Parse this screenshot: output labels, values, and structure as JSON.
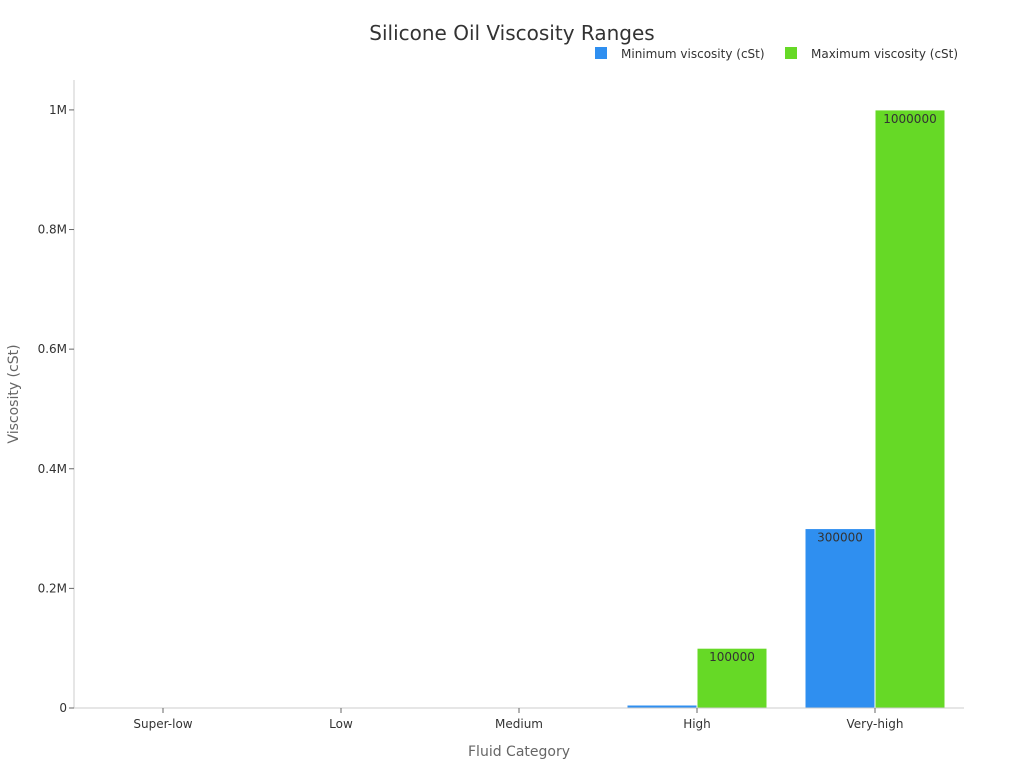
{
  "chart_data": {
    "type": "bar",
    "title": "Silicone Oil Viscosity Ranges",
    "xlabel": "Fluid Category",
    "ylabel": "Viscosity (cSt)",
    "categories": [
      "Super-low",
      "Low",
      "Medium",
      "High",
      "Very-high"
    ],
    "series": [
      {
        "name": "Minimum viscosity (cSt)",
        "color": "#2f8ff0",
        "values": [
          0.65,
          5,
          100,
          5000,
          300000
        ],
        "labels": [
          "",
          "",
          "",
          "",
          "300000"
        ]
      },
      {
        "name": "Maximum viscosity (cSt)",
        "color": "#66d926",
        "values": [
          3,
          50,
          1000,
          100000,
          1000000
        ],
        "labels": [
          "",
          "",
          "",
          "100000",
          "1000000"
        ]
      }
    ],
    "ylim": [
      0,
      1050000
    ],
    "yticks": [
      {
        "value": 0,
        "label": "0"
      },
      {
        "value": 200000,
        "label": "0.2M"
      },
      {
        "value": 400000,
        "label": "0.4M"
      },
      {
        "value": 600000,
        "label": "0.6M"
      },
      {
        "value": 800000,
        "label": "0.8M"
      },
      {
        "value": 1000000,
        "label": "1M"
      }
    ],
    "legend_position": "top-right",
    "grid": false
  }
}
